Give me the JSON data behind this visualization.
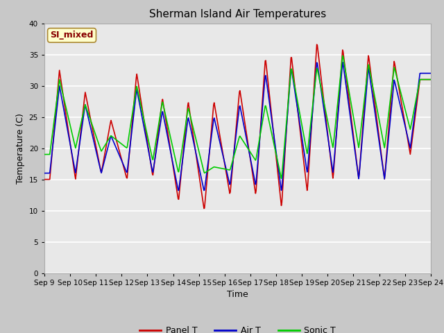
{
  "title": "Sherman Island Air Temperatures",
  "xlabel": "Time",
  "ylabel": "Temperature (C)",
  "ylim": [
    0,
    40
  ],
  "yticks": [
    0,
    5,
    10,
    15,
    20,
    25,
    30,
    35,
    40
  ],
  "x_labels": [
    "Sep 9",
    "Sep 10",
    "Sep 11",
    "Sep 12",
    "Sep 13",
    "Sep 14",
    "Sep 15",
    "Sep 16",
    "Sep 17",
    "Sep 18",
    "Sep 19",
    "Sep 20",
    "Sep 21",
    "Sep 22",
    "Sep 23",
    "Sep 24"
  ],
  "panel_t_color": "#cc0000",
  "air_t_color": "#0000cc",
  "sonic_t_color": "#00cc00",
  "legend_label_box": "SI_mixed",
  "legend_box_bg": "#ffffcc",
  "legend_box_border": "#aa8833",
  "plot_bg_color": "#e8e8e8",
  "fig_bg_color": "#c8c8c8",
  "grid_color": "#ffffff",
  "line_width": 1.2,
  "figsize": [
    6.4,
    4.8
  ],
  "dpi": 100
}
